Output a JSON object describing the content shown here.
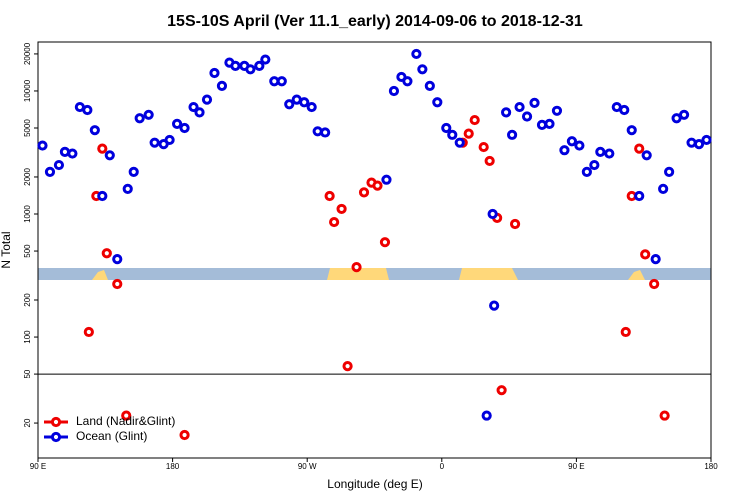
{
  "chart_data": {
    "type": "scatter",
    "title": "15S-10S April (Ver 11.1_early)   2014-09-06 to 2018-12-31",
    "x_label": "Longitude (deg E)",
    "y_label": "N Total",
    "log_y": true,
    "legend": "bottom-left",
    "hline": 50,
    "xlim": [
      90,
      540
    ],
    "xticks": [
      {
        "value": 90,
        "label": "90 E"
      },
      180,
      {
        "value": 270,
        "label": "90 W"
      },
      {
        "value": 360,
        "label": "0"
      },
      {
        "value": 450,
        "label": "90 E"
      },
      {
        "value": 540,
        "label": "180"
      }
    ],
    "ylim": [
      10.4,
      25000
    ],
    "yticks": [
      20,
      50,
      100,
      200,
      500,
      1000,
      2000,
      5000,
      10000,
      20000
    ],
    "series": [
      {
        "name": "Land (Nadir&Glint)",
        "color": "#ee0000",
        "x": [
          124,
          129,
          133,
          136,
          143,
          149,
          188,
          285,
          288,
          293,
          297,
          303,
          308,
          313,
          317,
          322,
          374,
          378,
          382,
          388,
          392,
          397,
          400,
          409,
          483,
          487,
          492,
          496,
          502,
          509
        ],
        "values": [
          110,
          1400,
          3400,
          480,
          270,
          23,
          16,
          1400,
          860,
          1100,
          58,
          370,
          1500,
          1800,
          1700,
          590,
          3800,
          4500,
          5800,
          3500,
          2700,
          930,
          37,
          830,
          110,
          1400,
          3400,
          470,
          270,
          23
        ]
      },
      {
        "name": "Ocean (Glint)",
        "color": "#0000dd",
        "x": [
          93,
          98,
          104,
          108,
          113,
          118,
          123,
          128,
          133,
          138,
          143,
          150,
          154,
          158,
          164,
          168,
          174,
          178,
          183,
          188,
          194,
          198,
          203,
          208,
          213,
          218,
          222,
          228,
          232,
          238,
          242,
          248,
          253,
          258,
          263,
          268,
          273,
          277,
          282,
          323,
          328,
          333,
          337,
          343,
          347,
          352,
          357,
          363,
          367,
          372,
          390,
          394,
          395,
          403,
          407,
          412,
          417,
          422,
          427,
          432,
          437,
          442,
          447,
          452,
          457,
          462,
          466,
          472,
          477,
          482,
          487,
          492,
          497,
          503,
          508,
          512,
          517,
          522,
          527,
          532,
          537
        ],
        "values": [
          3600,
          2200,
          2500,
          3200,
          3100,
          7400,
          7000,
          4800,
          1400,
          3000,
          430,
          1600,
          2200,
          6000,
          6400,
          3800,
          3700,
          4000,
          5400,
          5000,
          7400,
          6700,
          8500,
          14000,
          11000,
          17000,
          16000,
          16000,
          15000,
          16000,
          18000,
          12000,
          12000,
          7800,
          8500,
          8100,
          7400,
          4700,
          4600,
          1900,
          10000,
          13000,
          12000,
          20000,
          15000,
          11000,
          8100,
          5000,
          4400,
          3800,
          23,
          1000,
          180,
          6700,
          4400,
          7400,
          6200,
          8000,
          5300,
          5400,
          6900,
          3300,
          3900,
          3600,
          2200,
          2500,
          3200,
          3100,
          7400,
          7000,
          4800,
          1400,
          3000,
          430,
          1600,
          2200,
          6000,
          6400,
          3800,
          3700,
          4000
        ]
      }
    ]
  }
}
